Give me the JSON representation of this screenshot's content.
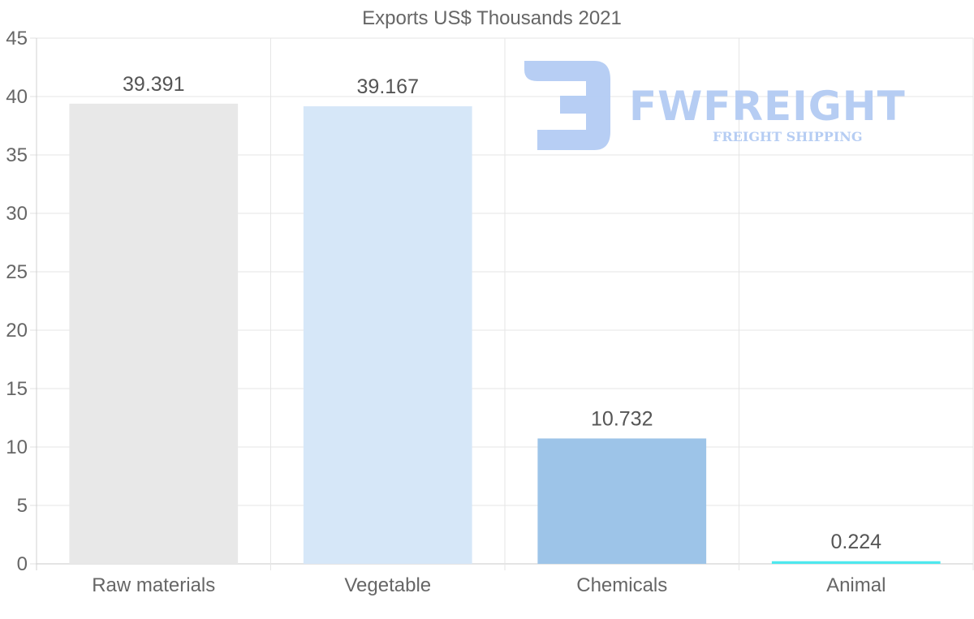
{
  "chart_data": {
    "type": "bar",
    "title": "Exports US$ Thousands 2021",
    "categories": [
      "Raw materials",
      "Vegetable",
      "Chemicals",
      "Animal"
    ],
    "values": [
      39.391,
      39.167,
      10.732,
      0.224
    ],
    "value_labels": [
      "39.391",
      "39.167",
      "10.732",
      "0.224"
    ],
    "colors": [
      "#e8e8e8",
      "#d6e7f8",
      "#9dc4e8",
      "#4ee8ee"
    ],
    "ylim": [
      0,
      45
    ],
    "yticks": [
      0,
      5,
      10,
      15,
      20,
      25,
      30,
      35,
      40,
      45
    ],
    "xlabel": "",
    "ylabel": "",
    "grid": true
  },
  "watermark": {
    "brand": "FWFREIGHT",
    "tagline": "FREIGHT SHIPPING",
    "color": "#b3cbf3"
  }
}
